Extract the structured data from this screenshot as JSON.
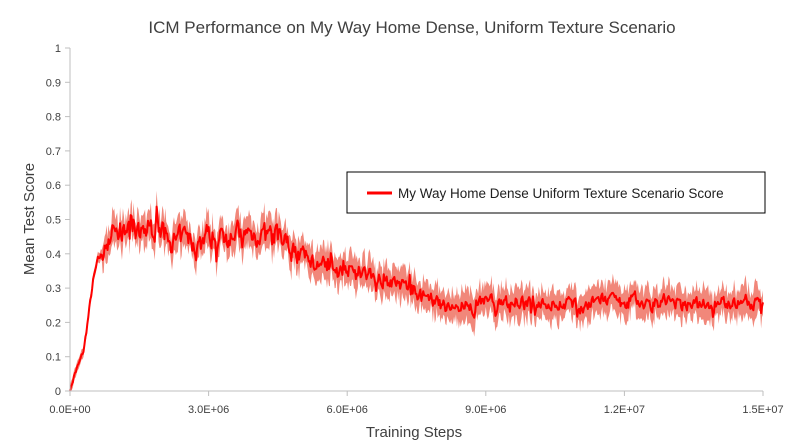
{
  "chart_data": {
    "type": "line",
    "title": "ICM Performance on My Way Home Dense, Uniform Texture Scenario",
    "xlabel": "Training Steps",
    "ylabel": "Mean Test Score",
    "xlim": [
      0,
      15000000
    ],
    "ylim": [
      0,
      1
    ],
    "x_ticks": [
      0,
      3000000,
      6000000,
      9000000,
      12000000,
      15000000
    ],
    "x_tick_labels": [
      "0.0E+00",
      "3.0E+06",
      "6.0E+06",
      "9.0E+06",
      "1.2E+07",
      "1.5E+07"
    ],
    "y_ticks": [
      0,
      0.1,
      0.2,
      0.3,
      0.4,
      0.5,
      0.6,
      0.7,
      0.8,
      0.9,
      1
    ],
    "y_tick_labels": [
      "0",
      "0.1",
      "0.2",
      "0.3",
      "0.4",
      "0.5",
      "0.6",
      "0.7",
      "0.8",
      "0.9",
      "1"
    ],
    "grid": false,
    "legend_position": "right",
    "series": [
      {
        "name": "My Way Home Dense Uniform Texture Scenario Score",
        "color": "#ff0000",
        "band_color": "#ef7a6c",
        "x": [
          0,
          100000,
          200000,
          300000,
          400000,
          500000,
          600000,
          700000,
          800000,
          900000,
          1000000,
          1250000,
          1500000,
          1750000,
          2000000,
          2250000,
          2500000,
          2750000,
          3000000,
          3250000,
          3500000,
          3750000,
          4000000,
          4250000,
          4500000,
          4750000,
          5000000,
          5250000,
          5500000,
          5750000,
          6000000,
          6250000,
          6500000,
          6750000,
          7000000,
          7250000,
          7500000,
          7750000,
          8000000,
          8250000,
          8500000,
          8750000,
          9000000,
          9250000,
          9500000,
          9750000,
          10000000,
          10250000,
          10500000,
          10750000,
          11000000,
          11250000,
          11500000,
          11750000,
          12000000,
          12250000,
          12500000,
          12750000,
          13000000,
          13250000,
          13500000,
          13750000,
          14000000,
          14250000,
          14500000,
          14750000,
          15000000
        ],
        "values": [
          0.0,
          0.05,
          0.08,
          0.12,
          0.22,
          0.32,
          0.38,
          0.4,
          0.44,
          0.46,
          0.47,
          0.46,
          0.45,
          0.48,
          0.46,
          0.43,
          0.45,
          0.42,
          0.46,
          0.44,
          0.47,
          0.45,
          0.46,
          0.45,
          0.44,
          0.42,
          0.4,
          0.38,
          0.37,
          0.36,
          0.36,
          0.34,
          0.34,
          0.33,
          0.31,
          0.31,
          0.29,
          0.26,
          0.25,
          0.24,
          0.25,
          0.24,
          0.27,
          0.26,
          0.26,
          0.26,
          0.25,
          0.26,
          0.25,
          0.26,
          0.24,
          0.25,
          0.27,
          0.26,
          0.25,
          0.27,
          0.25,
          0.26,
          0.26,
          0.25,
          0.26,
          0.25,
          0.26,
          0.26,
          0.25,
          0.25,
          0.25
        ]
      }
    ]
  }
}
